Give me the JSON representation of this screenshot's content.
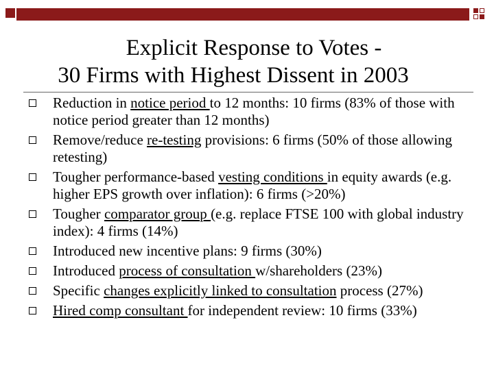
{
  "slide": {
    "title_line1": "Explicit Response to Votes -",
    "title_line2": "30 Firms with Highest Dissent in 2003",
    "bullets": [
      {
        "pre": "Reduction in ",
        "u": "notice period ",
        "post": "to 12 months: 10 firms (83% of those with notice period greater than 12 months)"
      },
      {
        "pre": "Remove/reduce ",
        "u": "re-testing",
        "post": " provisions: 6 firms (50% of those allowing retesting)"
      },
      {
        "pre": "Tougher performance-based ",
        "u": "vesting conditions ",
        "post": "in equity awards (e.g. higher EPS growth over inflation): 6 firms (>20%)"
      },
      {
        "pre": "Tougher ",
        "u": "comparator group ",
        "post": "(e.g. replace FTSE 100 with global industry index): 4 firms (14%)"
      },
      {
        "pre": "Introduced new incentive plans: 9 firms (30%)",
        "u": "",
        "post": ""
      },
      {
        "pre": "Introduced ",
        "u": "process of consultation ",
        "post": "w/shareholders (23%)"
      },
      {
        "pre": "Specific ",
        "u": "changes explicitly linked to consultation",
        "post": " process (27%)"
      },
      {
        "pre": "",
        "u": "Hired comp consultant ",
        "post": "for independent review: 10 firms (33%)"
      }
    ]
  },
  "colors": {
    "accent": "#8b1a1a"
  },
  "icons": {
    "bullet": "hollow-square-icon"
  }
}
